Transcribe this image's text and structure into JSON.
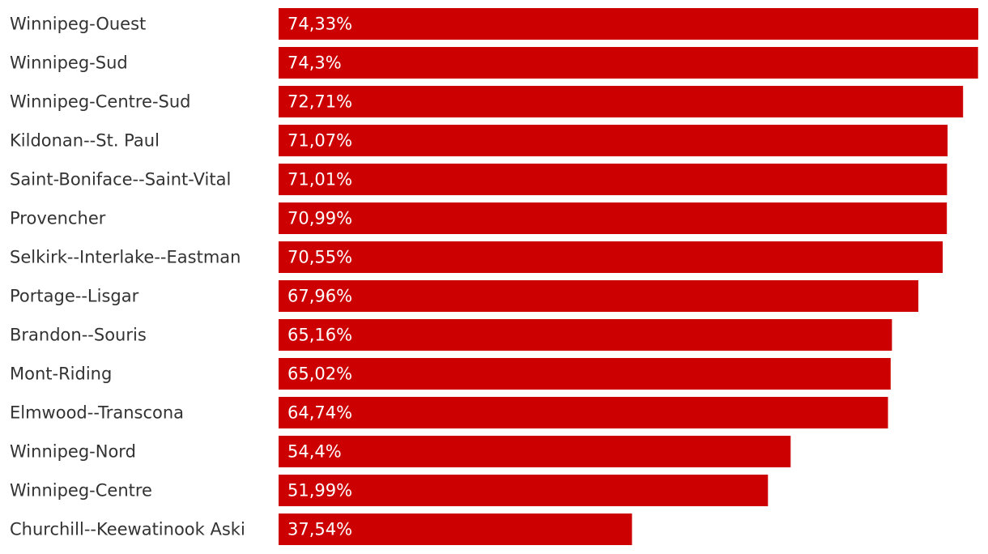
{
  "chart_data": {
    "type": "bar",
    "orientation": "horizontal",
    "categories": [
      "Winnipeg-Ouest",
      "Winnipeg-Sud",
      "Winnipeg-Centre-Sud",
      "Kildonan--St. Paul",
      "Saint-Boniface--Saint-Vital",
      "Provencher",
      "Selkirk--Interlake--Eastman",
      "Portage--Lisgar",
      "Brandon--Souris",
      "Mont-Riding",
      "Elmwood--Transcona",
      "Winnipeg-Nord",
      "Winnipeg-Centre",
      "Churchill--Keewatinook Aski"
    ],
    "values": [
      74.33,
      74.3,
      72.71,
      71.07,
      71.01,
      70.99,
      70.55,
      67.96,
      65.16,
      65.02,
      64.74,
      54.4,
      51.99,
      37.54
    ],
    "value_labels": [
      "74,33%",
      "74,3%",
      "72,71%",
      "71,07%",
      "71,01%",
      "70,99%",
      "70,55%",
      "67,96%",
      "65,16%",
      "65,02%",
      "64,74%",
      "54,4%",
      "51,99%",
      "37,54%"
    ],
    "xlim": [
      0,
      74.33
    ],
    "bar_color": "#cc0000",
    "grid": false,
    "legend": "none"
  }
}
